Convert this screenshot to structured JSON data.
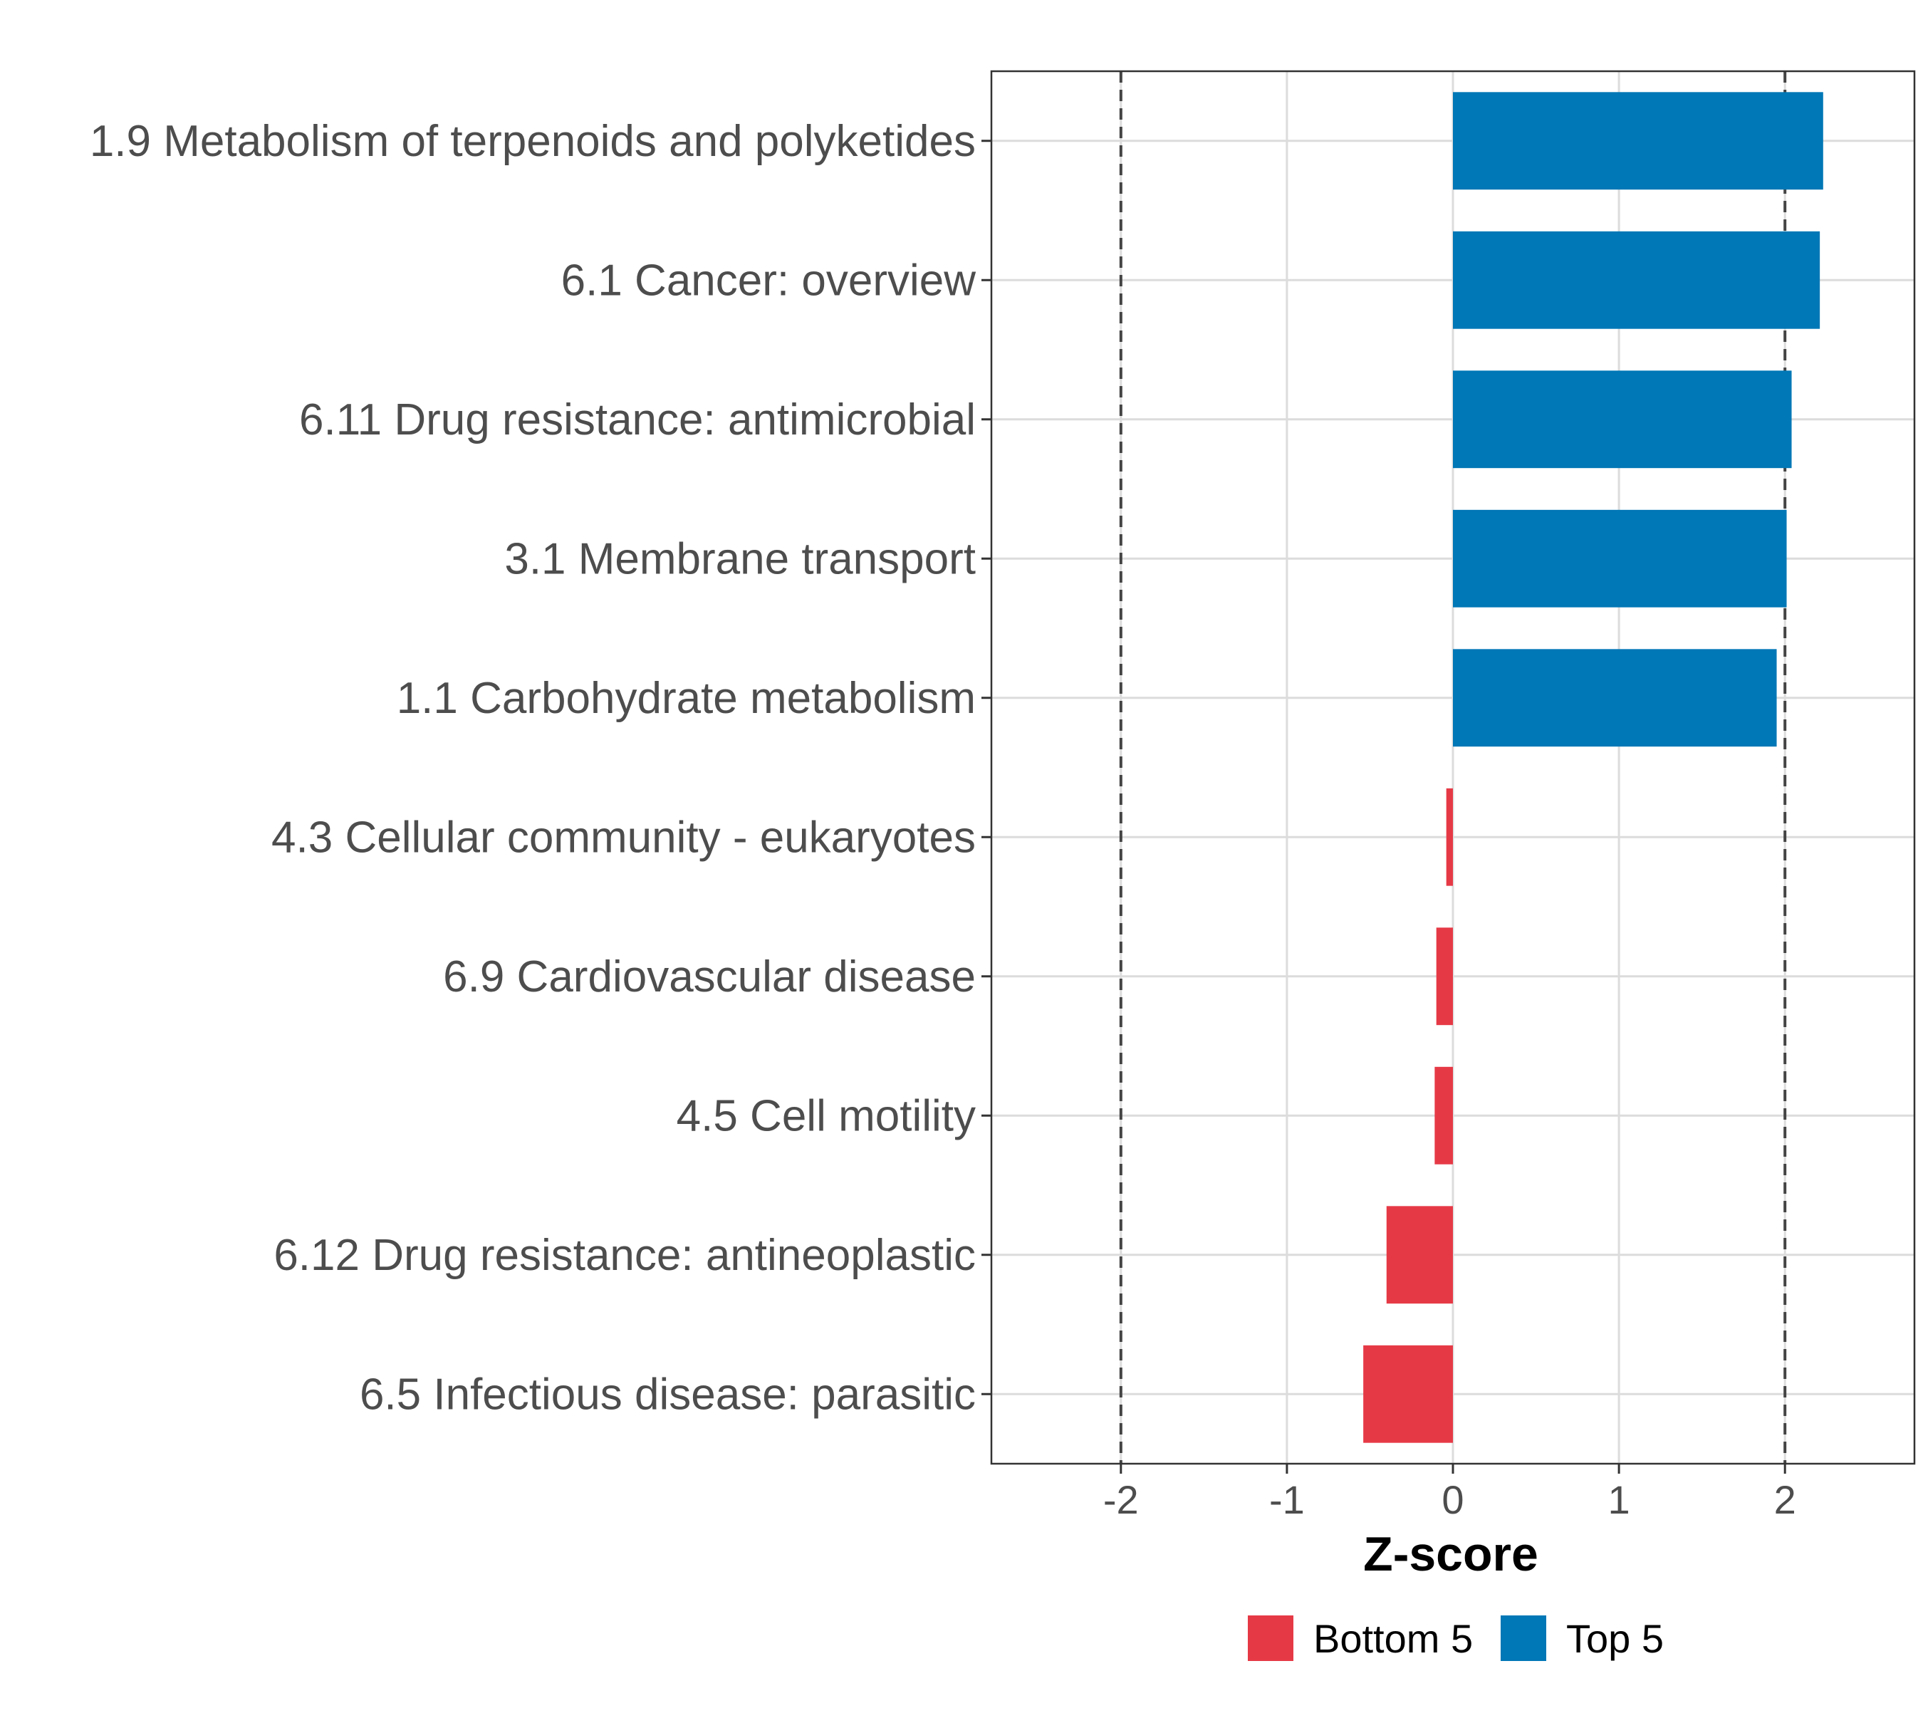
{
  "chart_data": {
    "type": "bar",
    "orientation": "horizontal",
    "title": "",
    "xlabel": "Z-score",
    "ylabel": "",
    "xlim": [
      -2.78,
      2.78
    ],
    "xticks": [
      -2,
      -1,
      0,
      1,
      2
    ],
    "xtick_labels": [
      "-2",
      "-1",
      "0",
      "1",
      "2"
    ],
    "reference_lines": [
      -2,
      2
    ],
    "grid": true,
    "legend_position": "bottom",
    "colors": {
      "Bottom 5": "#e63946",
      "Top 5": "#0077b6"
    },
    "legend": [
      {
        "label": "Bottom 5",
        "color": "#e63946"
      },
      {
        "label": "Top 5",
        "color": "#0077b6"
      }
    ],
    "bars": [
      {
        "label": "1.9 Metabolism of terpenoids and polyketides",
        "value": 2.23,
        "group": "Top 5"
      },
      {
        "label": "6.1 Cancer: overview",
        "value": 2.21,
        "group": "Top 5"
      },
      {
        "label": "6.11 Drug resistance: antimicrobial",
        "value": 2.04,
        "group": "Top 5"
      },
      {
        "label": "3.1 Membrane transport",
        "value": 2.01,
        "group": "Top 5"
      },
      {
        "label": "1.1 Carbohydrate metabolism",
        "value": 1.95,
        "group": "Top 5"
      },
      {
        "label": "4.3 Cellular community - eukaryotes",
        "value": -0.04,
        "group": "Bottom 5"
      },
      {
        "label": "6.9 Cardiovascular disease",
        "value": -0.1,
        "group": "Bottom 5"
      },
      {
        "label": "4.5 Cell motility",
        "value": -0.11,
        "group": "Bottom 5"
      },
      {
        "label": "6.12 Drug resistance: antineoplastic",
        "value": -0.4,
        "group": "Bottom 5"
      },
      {
        "label": "6.5 Infectious disease: parasitic",
        "value": -0.54,
        "group": "Bottom 5"
      }
    ]
  }
}
